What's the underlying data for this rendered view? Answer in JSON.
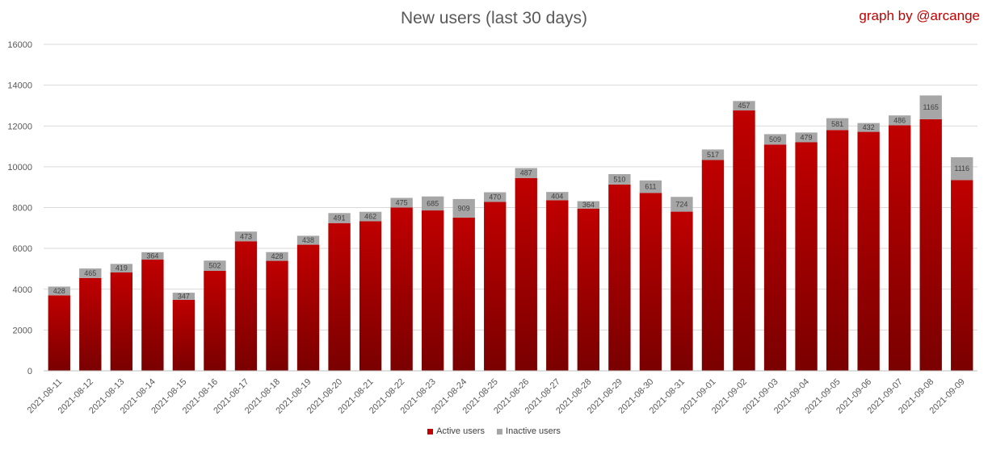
{
  "chart_data": {
    "type": "bar",
    "stacked": true,
    "title": "New users (last 30 days)",
    "credit": "graph by @arcange",
    "categories": [
      "2021-08-11",
      "2021-08-12",
      "2021-08-13",
      "2021-08-14",
      "2021-08-15",
      "2021-08-16",
      "2021-08-17",
      "2021-08-18",
      "2021-08-19",
      "2021-08-20",
      "2021-08-21",
      "2021-08-22",
      "2021-08-23",
      "2021-08-24",
      "2021-08-25",
      "2021-08-26",
      "2021-08-27",
      "2021-08-28",
      "2021-08-29",
      "2021-08-30",
      "2021-08-31",
      "2021-09-01",
      "2021-09-02",
      "2021-09-03",
      "2021-09-04",
      "2021-09-05",
      "2021-09-06",
      "2021-09-07",
      "2021-09-08",
      "2021-09-09"
    ],
    "series": [
      {
        "name": "Active users",
        "color": "#c00000",
        "values": [
          3700,
          4550,
          4820,
          5450,
          3480,
          4900,
          6350,
          5390,
          6180,
          7240,
          7330,
          8000,
          7860,
          7510,
          8280,
          9450,
          8360,
          7950,
          9130,
          8720,
          7800,
          10330,
          12765,
          11090,
          11200,
          11800,
          11711,
          12030,
          12330,
          9350
        ]
      },
      {
        "name": "Inactive users",
        "color": "#a6a6a6",
        "values": [
          428,
          465,
          419,
          364,
          347,
          502,
          473,
          428,
          438,
          491,
          462,
          475,
          685,
          909,
          470,
          487,
          404,
          364,
          510,
          611,
          724,
          517,
          457,
          509,
          479,
          581,
          432,
          486,
          1165,
          1116
        ]
      }
    ],
    "ylim": [
      0,
      16000
    ],
    "yticks": [
      0,
      2000,
      4000,
      6000,
      8000,
      10000,
      12000,
      14000,
      16000
    ],
    "grid": true,
    "legend": "bottom"
  }
}
